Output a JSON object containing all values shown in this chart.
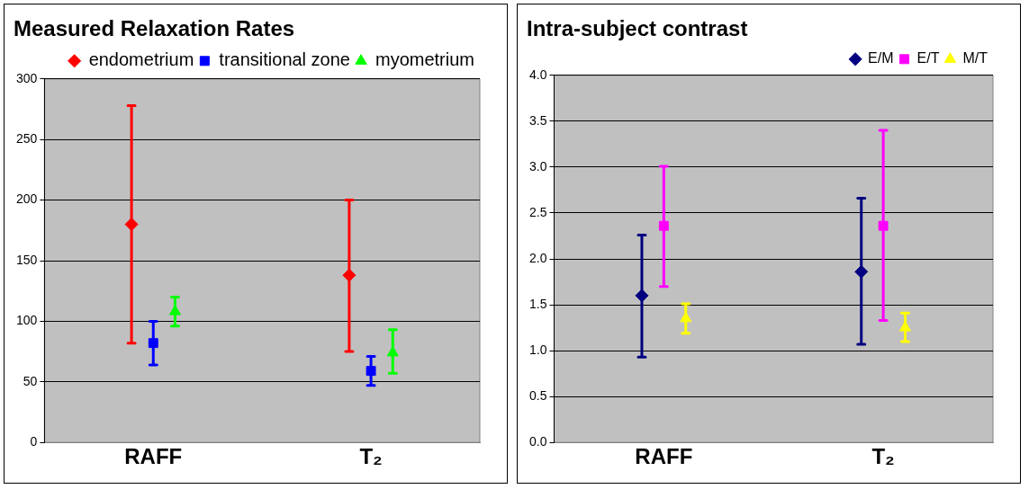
{
  "chart_data": [
    {
      "type": "scatter",
      "title": "Measured Relaxation Rates",
      "categories": [
        "RAFF",
        "T₂"
      ],
      "series": [
        {
          "name": "endometrium",
          "color": "#ff0000",
          "marker": "diamond",
          "values": [
            180,
            138
          ],
          "errors": [
            [
              82,
              278
            ],
            [
              75,
              200
            ]
          ]
        },
        {
          "name": "transitional zone",
          "color": "#0000ff",
          "marker": "square",
          "values": [
            82,
            59
          ],
          "errors": [
            [
              64,
              100
            ],
            [
              47,
              71
            ]
          ]
        },
        {
          "name": "myometrium",
          "color": "#00ff00",
          "marker": "triangle",
          "values": [
            108,
            74
          ],
          "errors": [
            [
              96,
              120
            ],
            [
              57,
              93
            ]
          ]
        }
      ],
      "ylim": [
        0,
        300
      ],
      "yticks": [
        0,
        50,
        100,
        150,
        200,
        250,
        300
      ],
      "grid": "y",
      "legend": "top right"
    },
    {
      "type": "scatter",
      "title": "Intra-subject contrast",
      "categories": [
        "RAFF",
        "T₂"
      ],
      "series": [
        {
          "name": "E/M",
          "color": "#000080",
          "marker": "diamond",
          "values": [
            1.6,
            1.86
          ],
          "errors": [
            [
              0.93,
              2.26
            ],
            [
              1.07,
              2.66
            ]
          ]
        },
        {
          "name": "E/T",
          "color": "#ff00ff",
          "marker": "square",
          "values": [
            2.36,
            2.36
          ],
          "errors": [
            [
              1.7,
              3.01
            ],
            [
              1.33,
              3.4
            ]
          ]
        },
        {
          "name": "M/T",
          "color": "#ffff00",
          "marker": "triangle",
          "values": [
            1.35,
            1.25
          ],
          "errors": [
            [
              1.19,
              1.51
            ],
            [
              1.1,
              1.41
            ]
          ]
        }
      ],
      "ylim": [
        0,
        4
      ],
      "yticks": [
        {
          "value": 0,
          "label": "0.0"
        },
        {
          "value": 0.5,
          "label": "0.5"
        },
        {
          "value": 1,
          "label": "1.0"
        },
        {
          "value": 1.5,
          "label": "1.5"
        },
        {
          "value": 2,
          "label": "2.0"
        },
        {
          "value": 2.5,
          "label": "2.5"
        },
        {
          "value": 3,
          "label": "3.0"
        },
        {
          "value": 3.5,
          "label": "3.5"
        },
        {
          "value": 4,
          "label": "4.0"
        }
      ],
      "grid": "y",
      "legend": "top right"
    }
  ]
}
